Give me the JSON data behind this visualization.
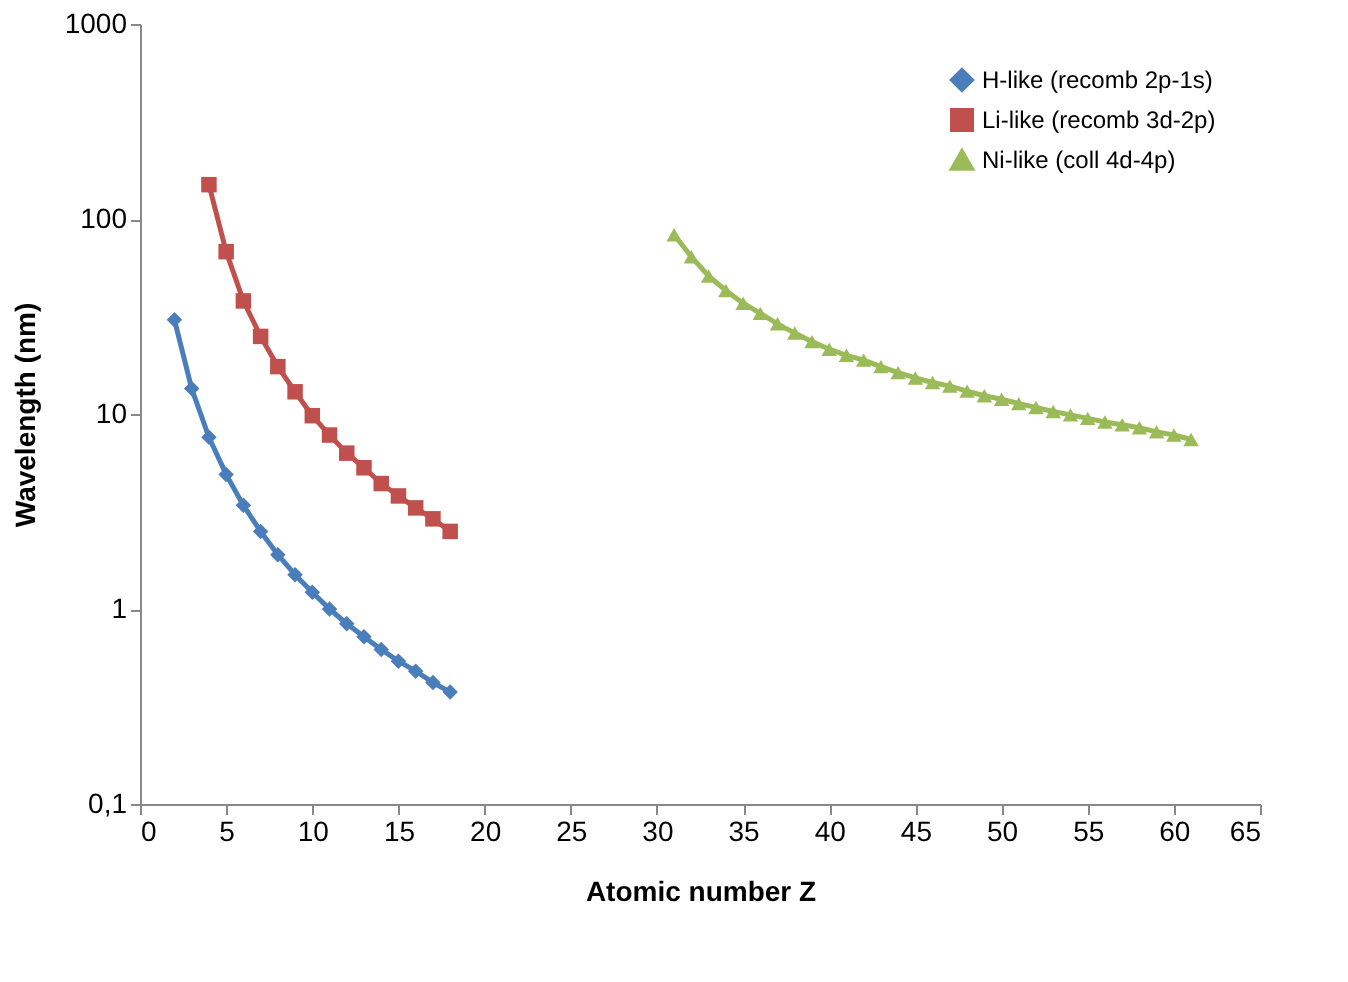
{
  "chart_data": {
    "type": "line",
    "xlabel": "Atomic number Z",
    "ylabel": "Wavelength (nm)",
    "log": "y",
    "xlim": [
      0,
      65
    ],
    "xticks": [
      0,
      5,
      10,
      15,
      20,
      25,
      30,
      35,
      40,
      45,
      50,
      55,
      60,
      65
    ],
    "ylim": [
      0.1,
      1000
    ],
    "yticks": [
      {
        "value": 0.1,
        "label": "0,1"
      },
      1,
      10,
      100,
      1000
    ],
    "grid": false,
    "legend": "top right",
    "line_style": "solid",
    "series": [
      {
        "name": "H-like (recomb 2p-1s)",
        "color": "#4a7ebb",
        "marker": "diamond",
        "x": [
          2,
          3,
          4,
          5,
          6,
          7,
          8,
          9,
          10,
          11,
          12,
          13,
          14,
          15,
          16,
          17,
          18
        ],
        "values": [
          30.4,
          13.5,
          7.6,
          4.9,
          3.4,
          2.5,
          1.9,
          1.5,
          1.22,
          1.0,
          0.84,
          0.72,
          0.62,
          0.54,
          0.48,
          0.42,
          0.375
        ]
      },
      {
        "name": "Li-like (recomb 3d-2p)",
        "color": "#c0504d",
        "marker": "square",
        "x": [
          4,
          5,
          6,
          7,
          8,
          9,
          10,
          11,
          12,
          13,
          14,
          15,
          16,
          17,
          18
        ],
        "values": [
          150,
          68,
          38,
          25,
          17.5,
          13,
          9.8,
          7.8,
          6.3,
          5.3,
          4.4,
          3.8,
          3.3,
          2.9,
          2.5
        ]
      },
      {
        "name": "Ni-like (coll 4d-4p)",
        "color": "#9bbb59",
        "marker": "triangle",
        "x": [
          31,
          32,
          33,
          34,
          35,
          36,
          37,
          38,
          39,
          40,
          41,
          42,
          43,
          44,
          45,
          46,
          47,
          48,
          49,
          50,
          51,
          52,
          53,
          54,
          55,
          56,
          57,
          58,
          59,
          60,
          61
        ],
        "values": [
          83,
          64,
          51,
          43,
          37,
          32.8,
          29,
          26,
          23.5,
          21.5,
          20,
          18.9,
          17.5,
          16.3,
          15.3,
          14.5,
          13.9,
          13.1,
          12.4,
          11.9,
          11.3,
          10.8,
          10.3,
          9.9,
          9.5,
          9.1,
          8.8,
          8.5,
          8.1,
          7.8,
          7.4
        ]
      }
    ]
  }
}
